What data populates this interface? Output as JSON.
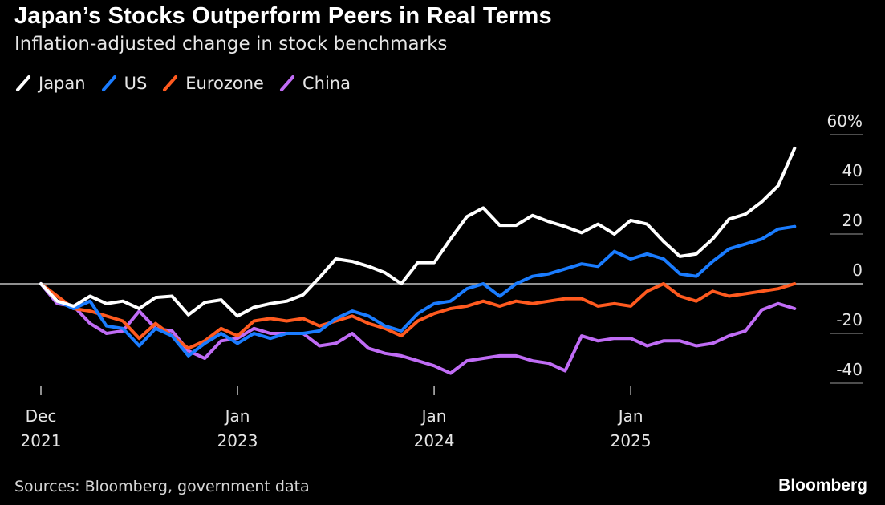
{
  "chart_data": {
    "type": "line",
    "title": "Japan’s Stocks Outperform Peers in Real Terms",
    "subtitle": "Inflation-adjusted change in stock benchmarks",
    "xlabel": "",
    "ylabel": "",
    "x_unit": "months since end of Dec 2021",
    "x": [
      0,
      1,
      2,
      3,
      4,
      5,
      6,
      7,
      8,
      9,
      10,
      11,
      12,
      13,
      14,
      15,
      16,
      17,
      18,
      19,
      20,
      21,
      22,
      23,
      24,
      25,
      26,
      27,
      28,
      29,
      30,
      31,
      32,
      33,
      34,
      35,
      36,
      37,
      38,
      39,
      40,
      41,
      42,
      43,
      44,
      45,
      46
    ],
    "x_ticks": [
      {
        "x": 0,
        "line1": "Dec",
        "line2": "2021"
      },
      {
        "x": 12,
        "line1": "Jan",
        "line2": "2023"
      },
      {
        "x": 24,
        "line1": "Jan",
        "line2": "2024"
      },
      {
        "x": 36,
        "line1": "Jan",
        "line2": "2025"
      }
    ],
    "y_ticks": [
      {
        "value": 60,
        "label": "60%"
      },
      {
        "value": 40,
        "label": "40"
      },
      {
        "value": 20,
        "label": "20"
      },
      {
        "value": 0,
        "label": "0"
      },
      {
        "value": -20,
        "label": "-20"
      },
      {
        "value": -40,
        "label": "-40"
      }
    ],
    "ylim": [
      -42,
      62
    ],
    "xlim": [
      -1,
      50
    ],
    "grid": false,
    "legend_position": "top-left",
    "series": [
      {
        "name": "Japan",
        "color": "#ffffff",
        "values": [
          0,
          -7,
          -9,
          -5,
          -8,
          -7,
          -10,
          -5.5,
          -5,
          -12.5,
          -7.5,
          -6.5,
          -13,
          -9.5,
          -8,
          -7,
          -4.5,
          2.5,
          10,
          9,
          7,
          4.5,
          0,
          8.5,
          8.5,
          18,
          27,
          30.5,
          23.5,
          23.5,
          27.5,
          25,
          23,
          20.5,
          24,
          20,
          25.5,
          24,
          17,
          11,
          12,
          18,
          26,
          28,
          33,
          39.5,
          54.5
        ]
      },
      {
        "name": "US",
        "color": "#1a7cff",
        "values": [
          0,
          -7,
          -10,
          -7,
          -17,
          -18,
          -25,
          -18,
          -21,
          -29,
          -24,
          -20,
          -24,
          -20,
          -22,
          -20,
          -20,
          -19,
          -14,
          -11,
          -13,
          -17,
          -19,
          -12,
          -8,
          -7,
          -2,
          0,
          -5,
          0,
          3,
          4,
          6,
          8,
          7,
          13,
          10,
          12,
          10,
          4,
          3,
          9,
          14,
          16,
          18,
          22,
          23
        ]
      },
      {
        "name": "Eurozone",
        "color": "#ff5a1f",
        "values": [
          0,
          -5,
          -10,
          -11,
          -13,
          -15,
          -22,
          -16,
          -21,
          -26,
          -23,
          -18,
          -21,
          -15,
          -14,
          -15,
          -14,
          -17,
          -15,
          -13,
          -16,
          -18,
          -21,
          -15,
          -12,
          -10,
          -9,
          -7,
          -9,
          -7,
          -8,
          -7,
          -6,
          -6,
          -9,
          -8,
          -9,
          -3,
          0,
          -5,
          -7,
          -3,
          -5,
          -4,
          -3,
          -2,
          0
        ]
      },
      {
        "name": "China",
        "color": "#c06cf5",
        "values": [
          0,
          -8,
          -9,
          -16,
          -20,
          -19,
          -11,
          -18,
          -19,
          -27,
          -30,
          -23,
          -22,
          -18,
          -20,
          -20,
          -20,
          -25,
          -24,
          -20,
          -26,
          -28,
          -29,
          -31,
          -33,
          -36,
          -31,
          -30,
          -29,
          -29,
          -31,
          -32,
          -35,
          -21,
          -23,
          -22,
          -22,
          -25,
          -23,
          -23,
          -25,
          -24,
          -21,
          -19,
          -10.5,
          -8,
          -10
        ]
      }
    ]
  },
  "footer": {
    "source": "Sources: Bloomberg, government data",
    "brand": "Bloomberg"
  }
}
